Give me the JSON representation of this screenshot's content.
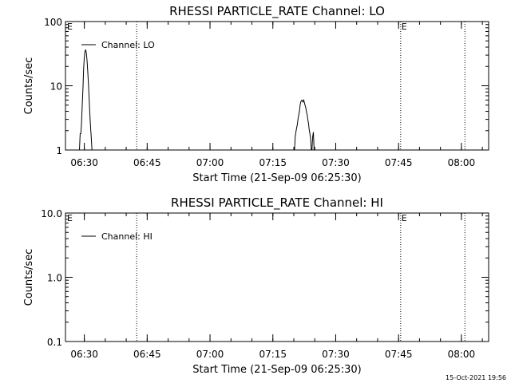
{
  "timestamp": "15-Oct-2021 19:56",
  "chart_data": [
    {
      "type": "line",
      "title": "RHESSI PARTICLE_RATE Channel: LO",
      "xlabel": "Start Time (21-Sep-09 06:25:30)",
      "ylabel": "Counts/sec",
      "yscale": "log",
      "ylim": [
        1,
        100
      ],
      "yticks": [
        1,
        10,
        100
      ],
      "ytick_labels": [
        "1",
        "10",
        "100"
      ],
      "xlim": [
        "06:25:30",
        "08:06:30"
      ],
      "xticks": [
        "06:30",
        "06:45",
        "07:00",
        "07:15",
        "07:30",
        "07:45",
        "08:00"
      ],
      "legend": {
        "label": "Channel: LO",
        "placement": "top-left"
      },
      "markers": [
        {
          "time": "06:42:30",
          "label": ""
        },
        {
          "time": "07:45:30",
          "label": "E"
        },
        {
          "time": "08:00:50",
          "label": ""
        }
      ],
      "corner_label": "E",
      "series": [
        {
          "x": [
            "06:28:50",
            "06:29:00",
            "06:29:10",
            "06:29:20",
            "06:29:30",
            "06:29:40",
            "06:29:50",
            "06:30:00",
            "06:30:10",
            "06:30:20",
            "06:30:30",
            "06:30:40",
            "06:30:50",
            "06:31:00",
            "06:31:10",
            "06:31:20",
            "06:31:30",
            "06:31:40",
            "06:31:50",
            "06:32:00",
            "06:32:10",
            "06:32:20",
            "06:32:30",
            "06:32:40",
            "06:32:50",
            "06:33:00",
            "07:20:10",
            "07:20:20",
            "07:20:30",
            "07:20:40",
            "07:20:50",
            "07:21:00",
            "07:21:10",
            "07:21:20",
            "07:21:30",
            "07:21:40",
            "07:21:50",
            "07:22:00",
            "07:22:10",
            "07:22:20",
            "07:22:30",
            "07:22:40",
            "07:22:50",
            "07:23:00",
            "07:23:10",
            "07:23:20",
            "07:23:30",
            "07:23:40",
            "07:23:50",
            "07:24:00",
            "07:24:10",
            "07:24:20",
            "07:24:30",
            "07:24:40",
            "07:24:50",
            "07:25:00",
            "07:25:10",
            "07:25:20",
            "07:25:30",
            "07:25:40",
            "07:25:50",
            "07:26:00",
            "07:26:10",
            "07:26:20",
            "07:26:30"
          ],
          "y": [
            1,
            1.8,
            1.8,
            2.6,
            5,
            9,
            18,
            28,
            35,
            36,
            32,
            24,
            16,
            10,
            6,
            3.5,
            2.2,
            1.5,
            1,
            1,
            1,
            1,
            1,
            1,
            1,
            1,
            1,
            1.6,
            1.9,
            2.2,
            2.5,
            3,
            3.5,
            4,
            5,
            5.6,
            5.9,
            5.9,
            5.6,
            6,
            5.6,
            5,
            4.6,
            4,
            3.6,
            3,
            2.6,
            2.1,
            1.8,
            1.5,
            1,
            1,
            1.6,
            1.9,
            1,
            1,
            1,
            1,
            1,
            1,
            1,
            1,
            1,
            1,
            1
          ]
        }
      ]
    },
    {
      "type": "line",
      "title": "RHESSI PARTICLE_RATE Channel: HI",
      "xlabel": "Start Time (21-Sep-09 06:25:30)",
      "ylabel": "Counts/sec",
      "yscale": "log",
      "ylim": [
        0.1,
        10
      ],
      "yticks": [
        0.1,
        1,
        10
      ],
      "ytick_labels": [
        "0.1",
        "1.0",
        "10.0"
      ],
      "xlim": [
        "06:25:30",
        "08:06:30"
      ],
      "xticks": [
        "06:30",
        "06:45",
        "07:00",
        "07:15",
        "07:30",
        "07:45",
        "08:00"
      ],
      "legend": {
        "label": "Channel: HI",
        "placement": "top-left"
      },
      "markers": [
        {
          "time": "06:42:30",
          "label": ""
        },
        {
          "time": "07:45:30",
          "label": "E"
        },
        {
          "time": "08:00:50",
          "label": ""
        }
      ],
      "corner_label": "E",
      "series": [
        {
          "x": [],
          "y": []
        }
      ]
    }
  ]
}
